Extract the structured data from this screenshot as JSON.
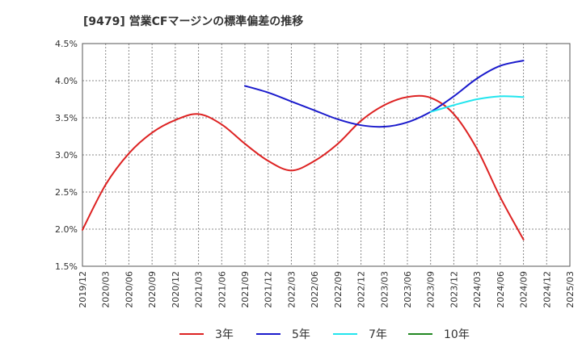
{
  "chart_data": {
    "type": "line",
    "title": "[9479]  営業CFマージンの標準偏差の推移",
    "xlabel": "",
    "ylabel": "",
    "ylim": [
      1.5,
      4.5
    ],
    "yticks": [
      "4.5%",
      "4.0%",
      "3.5%",
      "3.0%",
      "2.5%",
      "2.0%",
      "1.5%"
    ],
    "categories": [
      "2019/12",
      "2020/03",
      "2020/06",
      "2020/09",
      "2020/12",
      "2021/03",
      "2021/06",
      "2021/09",
      "2021/12",
      "2022/03",
      "2022/06",
      "2022/09",
      "2022/12",
      "2023/03",
      "2023/06",
      "2023/09",
      "2023/12",
      "2024/03",
      "2024/06",
      "2024/09",
      "2024/12",
      "2025/03"
    ],
    "grid": true,
    "legend_position": "bottom",
    "series": [
      {
        "name": "3年",
        "color": "#dd2222",
        "values": [
          1.99,
          2.6,
          3.02,
          3.3,
          3.47,
          3.55,
          3.41,
          3.15,
          2.92,
          2.79,
          2.92,
          3.15,
          3.46,
          3.67,
          3.78,
          3.77,
          3.55,
          3.08,
          2.43,
          1.86,
          null,
          null
        ]
      },
      {
        "name": "5年",
        "color": "#1a1acc",
        "values": [
          null,
          null,
          null,
          null,
          null,
          null,
          null,
          3.93,
          3.84,
          3.72,
          3.6,
          3.48,
          3.4,
          3.38,
          3.44,
          3.58,
          3.79,
          4.03,
          4.2,
          4.27,
          null,
          null
        ]
      },
      {
        "name": "7年",
        "color": "#22e5ee",
        "values": [
          null,
          null,
          null,
          null,
          null,
          null,
          null,
          null,
          null,
          null,
          null,
          null,
          null,
          null,
          null,
          3.58,
          3.67,
          3.75,
          3.79,
          3.78,
          null,
          null
        ]
      },
      {
        "name": "10年",
        "color": "#228822",
        "values": [
          null,
          null,
          null,
          null,
          null,
          null,
          null,
          null,
          null,
          null,
          null,
          null,
          null,
          null,
          null,
          null,
          null,
          null,
          null,
          null,
          null,
          null
        ]
      }
    ]
  }
}
